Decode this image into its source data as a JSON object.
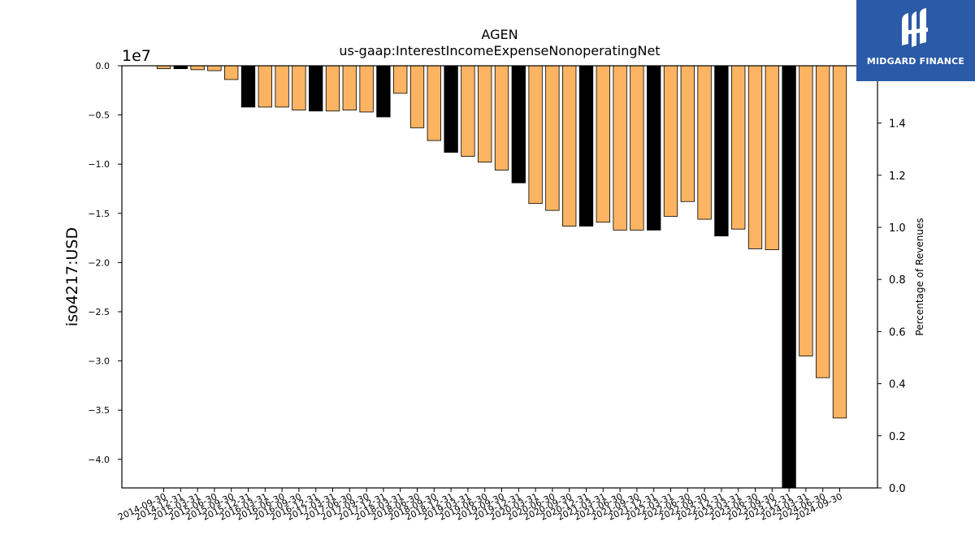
{
  "chart_data": {
    "type": "bar",
    "title": "AGEN",
    "subtitle": "us-gaap:InterestIncomeExpenseNonoperatingNet",
    "ylabel": "iso4217:USD",
    "y_offset_label": "1e7",
    "y2label": "Percentage of Revenues",
    "ylim": [
      -4.3,
      0
    ],
    "y_ticks": [
      "0.0",
      "−0.5",
      "−1.0",
      "−1.5",
      "−2.0",
      "−2.5",
      "−3.0",
      "−3.5",
      "−4.0"
    ],
    "y2lim": [
      0,
      1.62
    ],
    "y2_ticks": [
      "0.0",
      "0.2",
      "0.4",
      "0.6",
      "0.8",
      "1.0",
      "1.2",
      "1.4"
    ],
    "grid": false,
    "categories": [
      "2014-09-30",
      "2014-12-31",
      "2015-03-31",
      "2015-06-30",
      "2015-09-30",
      "2015-12-31",
      "2016-03-31",
      "2016-06-30",
      "2016-09-30",
      "2016-12-31",
      "2017-03-31",
      "2017-06-30",
      "2017-09-30",
      "2017-12-31",
      "2018-03-31",
      "2018-06-30",
      "2018-09-30",
      "2018-12-31",
      "2019-03-31",
      "2019-06-30",
      "2019-09-30",
      "2019-12-31",
      "2020-03-31",
      "2020-06-30",
      "2020-09-30",
      "2020-12-31",
      "2021-03-31",
      "2021-06-30",
      "2021-09-30",
      "2021-12-31",
      "2022-03-31",
      "2022-06-30",
      "2022-09-30",
      "2022-12-31",
      "2023-03-31",
      "2023-06-30",
      "2023-09-30",
      "2023-12-31",
      "2024-03-31",
      "2024-06-30",
      "2024-09-30"
    ],
    "values": [
      -0.03,
      -0.03,
      -0.04,
      -0.05,
      -0.14,
      -0.42,
      -0.42,
      -0.42,
      -0.45,
      -0.46,
      -0.46,
      -0.45,
      -0.47,
      -0.52,
      -0.28,
      -0.63,
      -0.76,
      -0.88,
      -0.92,
      -0.98,
      -1.06,
      -1.19,
      -1.4,
      -1.47,
      -1.63,
      -1.63,
      -1.59,
      -1.67,
      -1.67,
      -1.67,
      -1.53,
      -1.38,
      -1.56,
      -1.73,
      -1.66,
      -1.86,
      -1.87,
      -4.3,
      -2.95,
      -3.17,
      -3.58
    ],
    "value_unit": "1e7 USD",
    "annual_flags": [
      false,
      true,
      false,
      false,
      false,
      true,
      false,
      false,
      false,
      true,
      false,
      false,
      false,
      true,
      false,
      false,
      false,
      true,
      false,
      false,
      false,
      true,
      false,
      false,
      false,
      true,
      false,
      false,
      false,
      true,
      false,
      false,
      false,
      true,
      false,
      false,
      false,
      true,
      false,
      false,
      false
    ],
    "colors": {
      "quarterly": "#fdb462",
      "annual": "#000000"
    }
  },
  "logo": {
    "text": "MIDGARD FINANCE",
    "bg": "#2b5aa8"
  }
}
